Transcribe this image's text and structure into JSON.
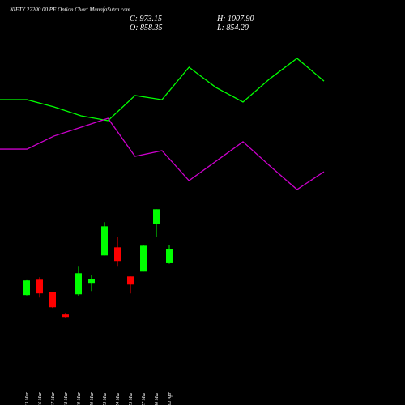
{
  "chart_data": [
    {
      "type": "candlestick",
      "title": "NIFTY 22200.00 PE Option  Chart MunafaSutra.com",
      "info": [
        "C: 973.15",
        "O: 858.35",
        "H: 1007.90",
        "L: 854.20"
      ],
      "categories": [
        "13 Mar",
        "16 Mar",
        "17 Mar",
        "18 Mar",
        "19 Mar",
        "20 Mar",
        "23 Mar",
        "24 Mar",
        "25 Mar",
        "27 Mar",
        "30 Mar",
        "01 Apr"
      ],
      "open": [
        603,
        726,
        629,
        447,
        609,
        694,
        921,
        986,
        752,
        791,
        1175,
        858.35
      ],
      "high": [
        722,
        746,
        629,
        460,
        830,
        765,
        1188,
        1071,
        752,
        1006,
        1292,
        1007.9
      ],
      "low": [
        600,
        583,
        499,
        421,
        596,
        635,
        921,
        830,
        616,
        791,
        1070,
        854.2
      ],
      "close": [
        720,
        616,
        505,
        427,
        778,
        733,
        1155,
        876,
        687,
        999,
        1292,
        973.15
      ],
      "up_color": "#00ff00",
      "down_color": "#ff0000",
      "ylim": [
        370,
        1320
      ]
    },
    {
      "type": "line",
      "series": [
        {
          "color": "#00ff00",
          "values": [
            66.8,
            66.8,
            62.1,
            56.3,
            53.2,
            69.5,
            66.8,
            87.9,
            74.7,
            65.3,
            80.5,
            93.7,
            78.9
          ]
        },
        {
          "color": "#cc00cc",
          "values": [
            34.7,
            34.7,
            43.2,
            48.9,
            54.7,
            30,
            33.7,
            14.2,
            26.8,
            39.5,
            23.7,
            8.4,
            20
          ]
        }
      ],
      "ylim": [
        0,
        100
      ]
    }
  ]
}
